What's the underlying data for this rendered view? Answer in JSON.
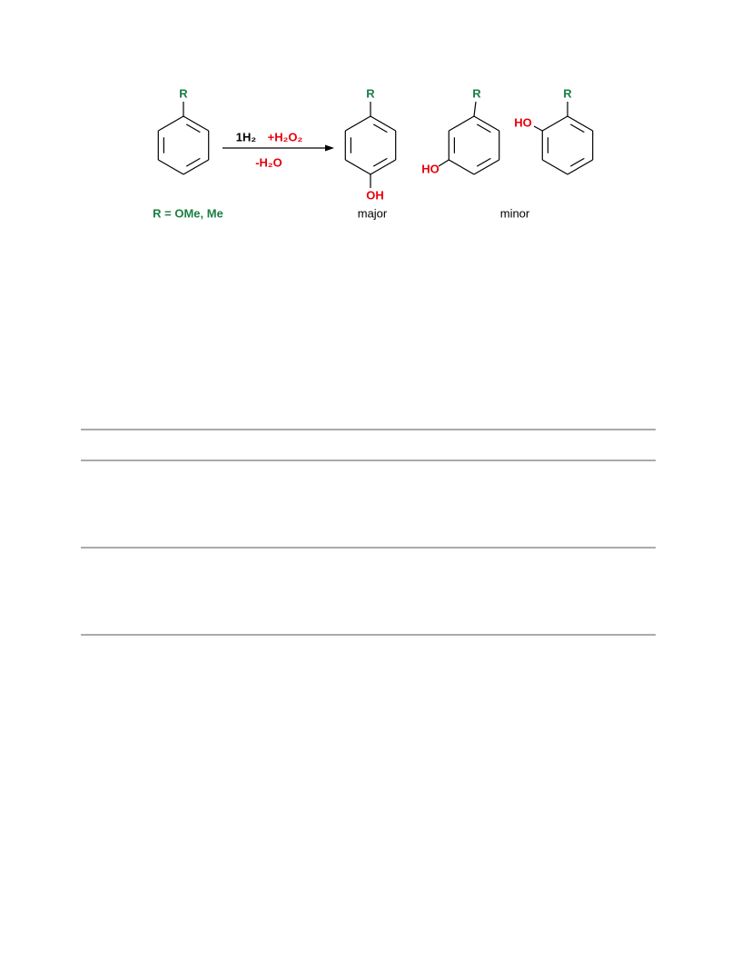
{
  "scheme": {
    "reactant": {
      "substituent": "R",
      "note": "R = OMe, Me"
    },
    "reagents": [
      "1H₂",
      "+H₂O₂"
    ],
    "byproduct": "-H₂O",
    "products": [
      {
        "substituent": "R",
        "group": "OH",
        "label": "major"
      },
      {
        "substituent": "R",
        "group": "HO"
      },
      {
        "substituent": "R",
        "group": "HO"
      }
    ],
    "minor_label": "minor"
  }
}
